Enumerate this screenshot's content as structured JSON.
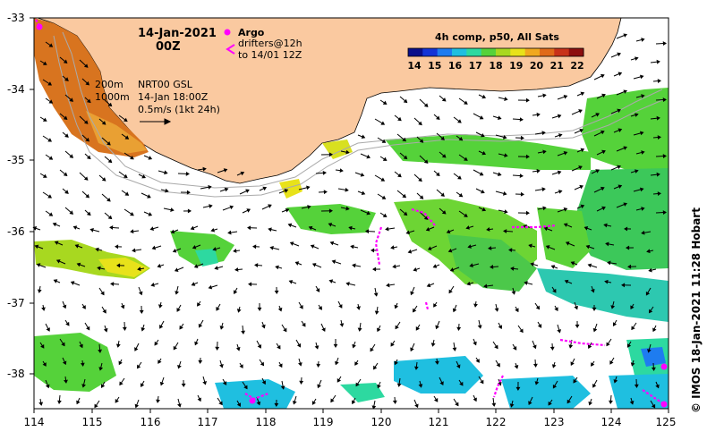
{
  "map": {
    "date": "14-Jan-2021",
    "time": "00Z",
    "lat_ticks": [
      "-33",
      "-34",
      "-35",
      "-36",
      "-37",
      "-38"
    ],
    "lon_ticks": [
      "114",
      "115",
      "116",
      "117",
      "118",
      "119",
      "120",
      "121",
      "122",
      "123",
      "124",
      "125"
    ],
    "lon_range": [
      114,
      125
    ],
    "lat_range": [
      -38.5,
      -33
    ]
  },
  "legend": {
    "argo_label": "Argo",
    "drifter_label_1": "drifters@12h",
    "drifter_label_2": "to 14/01 12Z",
    "colorbar_title": "4h comp, p50, All Sats",
    "colorbar_ticks": [
      "14",
      "15",
      "16",
      "17",
      "18",
      "19",
      "20",
      "21",
      "22"
    ],
    "colorbar_colors": [
      "#0a0f8a",
      "#1434d6",
      "#1e7cf0",
      "#1fbfe0",
      "#2dd9a0",
      "#55d23a",
      "#a8d820",
      "#e8e21a",
      "#f0a81e",
      "#e06a1a",
      "#c8321a",
      "#8c0f0f"
    ]
  },
  "annotations": {
    "contour_200": "200m",
    "contour_1000": "1000m",
    "nrt_label": "NRT00 GSL",
    "nrt_time": "14-Jan 18:00Z",
    "scale_label": "0.5m/s (1kt 24h)"
  },
  "credit": "© IMOS 18-Jan-2021 11:28 Hobart",
  "colors": {
    "land": "#fac9a0",
    "argo": "#ff00ff",
    "drifter": "#ff00ff",
    "bathy": "#aaaaaa"
  }
}
